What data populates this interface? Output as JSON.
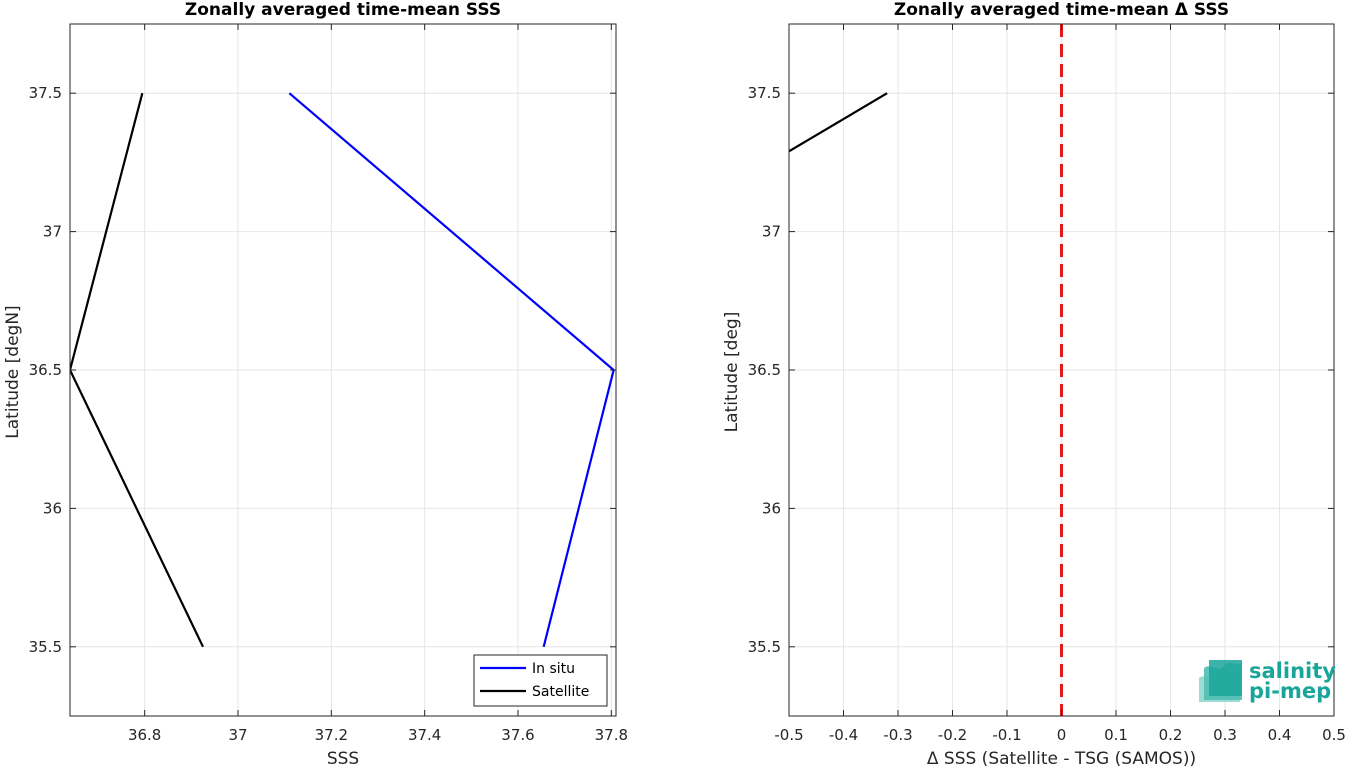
{
  "chart_data": [
    {
      "type": "line",
      "title": "Zonally averaged time-mean SSS",
      "xlabel": "SSS",
      "ylabel": "Latitude [degN]",
      "xlim": [
        36.64,
        37.81
      ],
      "ylim": [
        35.25,
        37.75
      ],
      "xticks": [
        36.8,
        37,
        37.2,
        37.4,
        37.6,
        37.8
      ],
      "xtick_labels": [
        "36.8",
        "37",
        "37.2",
        "37.4",
        "37.6",
        "37.8"
      ],
      "yticks": [
        35.5,
        36,
        36.5,
        37,
        37.5
      ],
      "ytick_labels": [
        "35.5",
        "36",
        "36.5",
        "37",
        "37.5"
      ],
      "grid": true,
      "legend_position": "bottom-right",
      "series": [
        {
          "name": "In situ",
          "color": "#0000ff",
          "x": [
            37.655,
            37.805,
            37.11
          ],
          "y": [
            35.5,
            36.5,
            37.5
          ]
        },
        {
          "name": "Satellite",
          "color": "#000000",
          "x": [
            36.925,
            36.64,
            36.795
          ],
          "y": [
            35.5,
            36.5,
            37.5
          ]
        }
      ]
    },
    {
      "type": "line",
      "title": "Zonally averaged time-mean Δ SSS",
      "xlabel": "Δ SSS (Satellite - TSG (SAMOS))",
      "ylabel": "Latitude [deg]",
      "xlim": [
        -0.5,
        0.5
      ],
      "ylim": [
        35.25,
        37.75
      ],
      "xticks": [
        -0.5,
        -0.4,
        -0.3,
        -0.2,
        -0.1,
        0,
        0.1,
        0.2,
        0.3,
        0.4,
        0.5
      ],
      "xtick_labels": [
        "-0.5",
        "-0.4",
        "-0.3",
        "-0.2",
        "-0.1",
        "0",
        "0.1",
        "0.2",
        "0.3",
        "0.4",
        "0.5"
      ],
      "yticks": [
        35.5,
        36,
        36.5,
        37,
        37.5
      ],
      "ytick_labels": [
        "35.5",
        "36",
        "36.5",
        "37",
        "37.5"
      ],
      "grid": true,
      "series": [
        {
          "color": "#000000",
          "x": [
            -0.5,
            -0.32
          ],
          "y": [
            37.29,
            37.5
          ]
        }
      ],
      "reference_line": {
        "x": 0,
        "color": "#e31a1c",
        "style": "dashed"
      }
    }
  ],
  "logo": {
    "line1": "salinity",
    "line2": "pi-mep",
    "color": "#1aa59a"
  }
}
